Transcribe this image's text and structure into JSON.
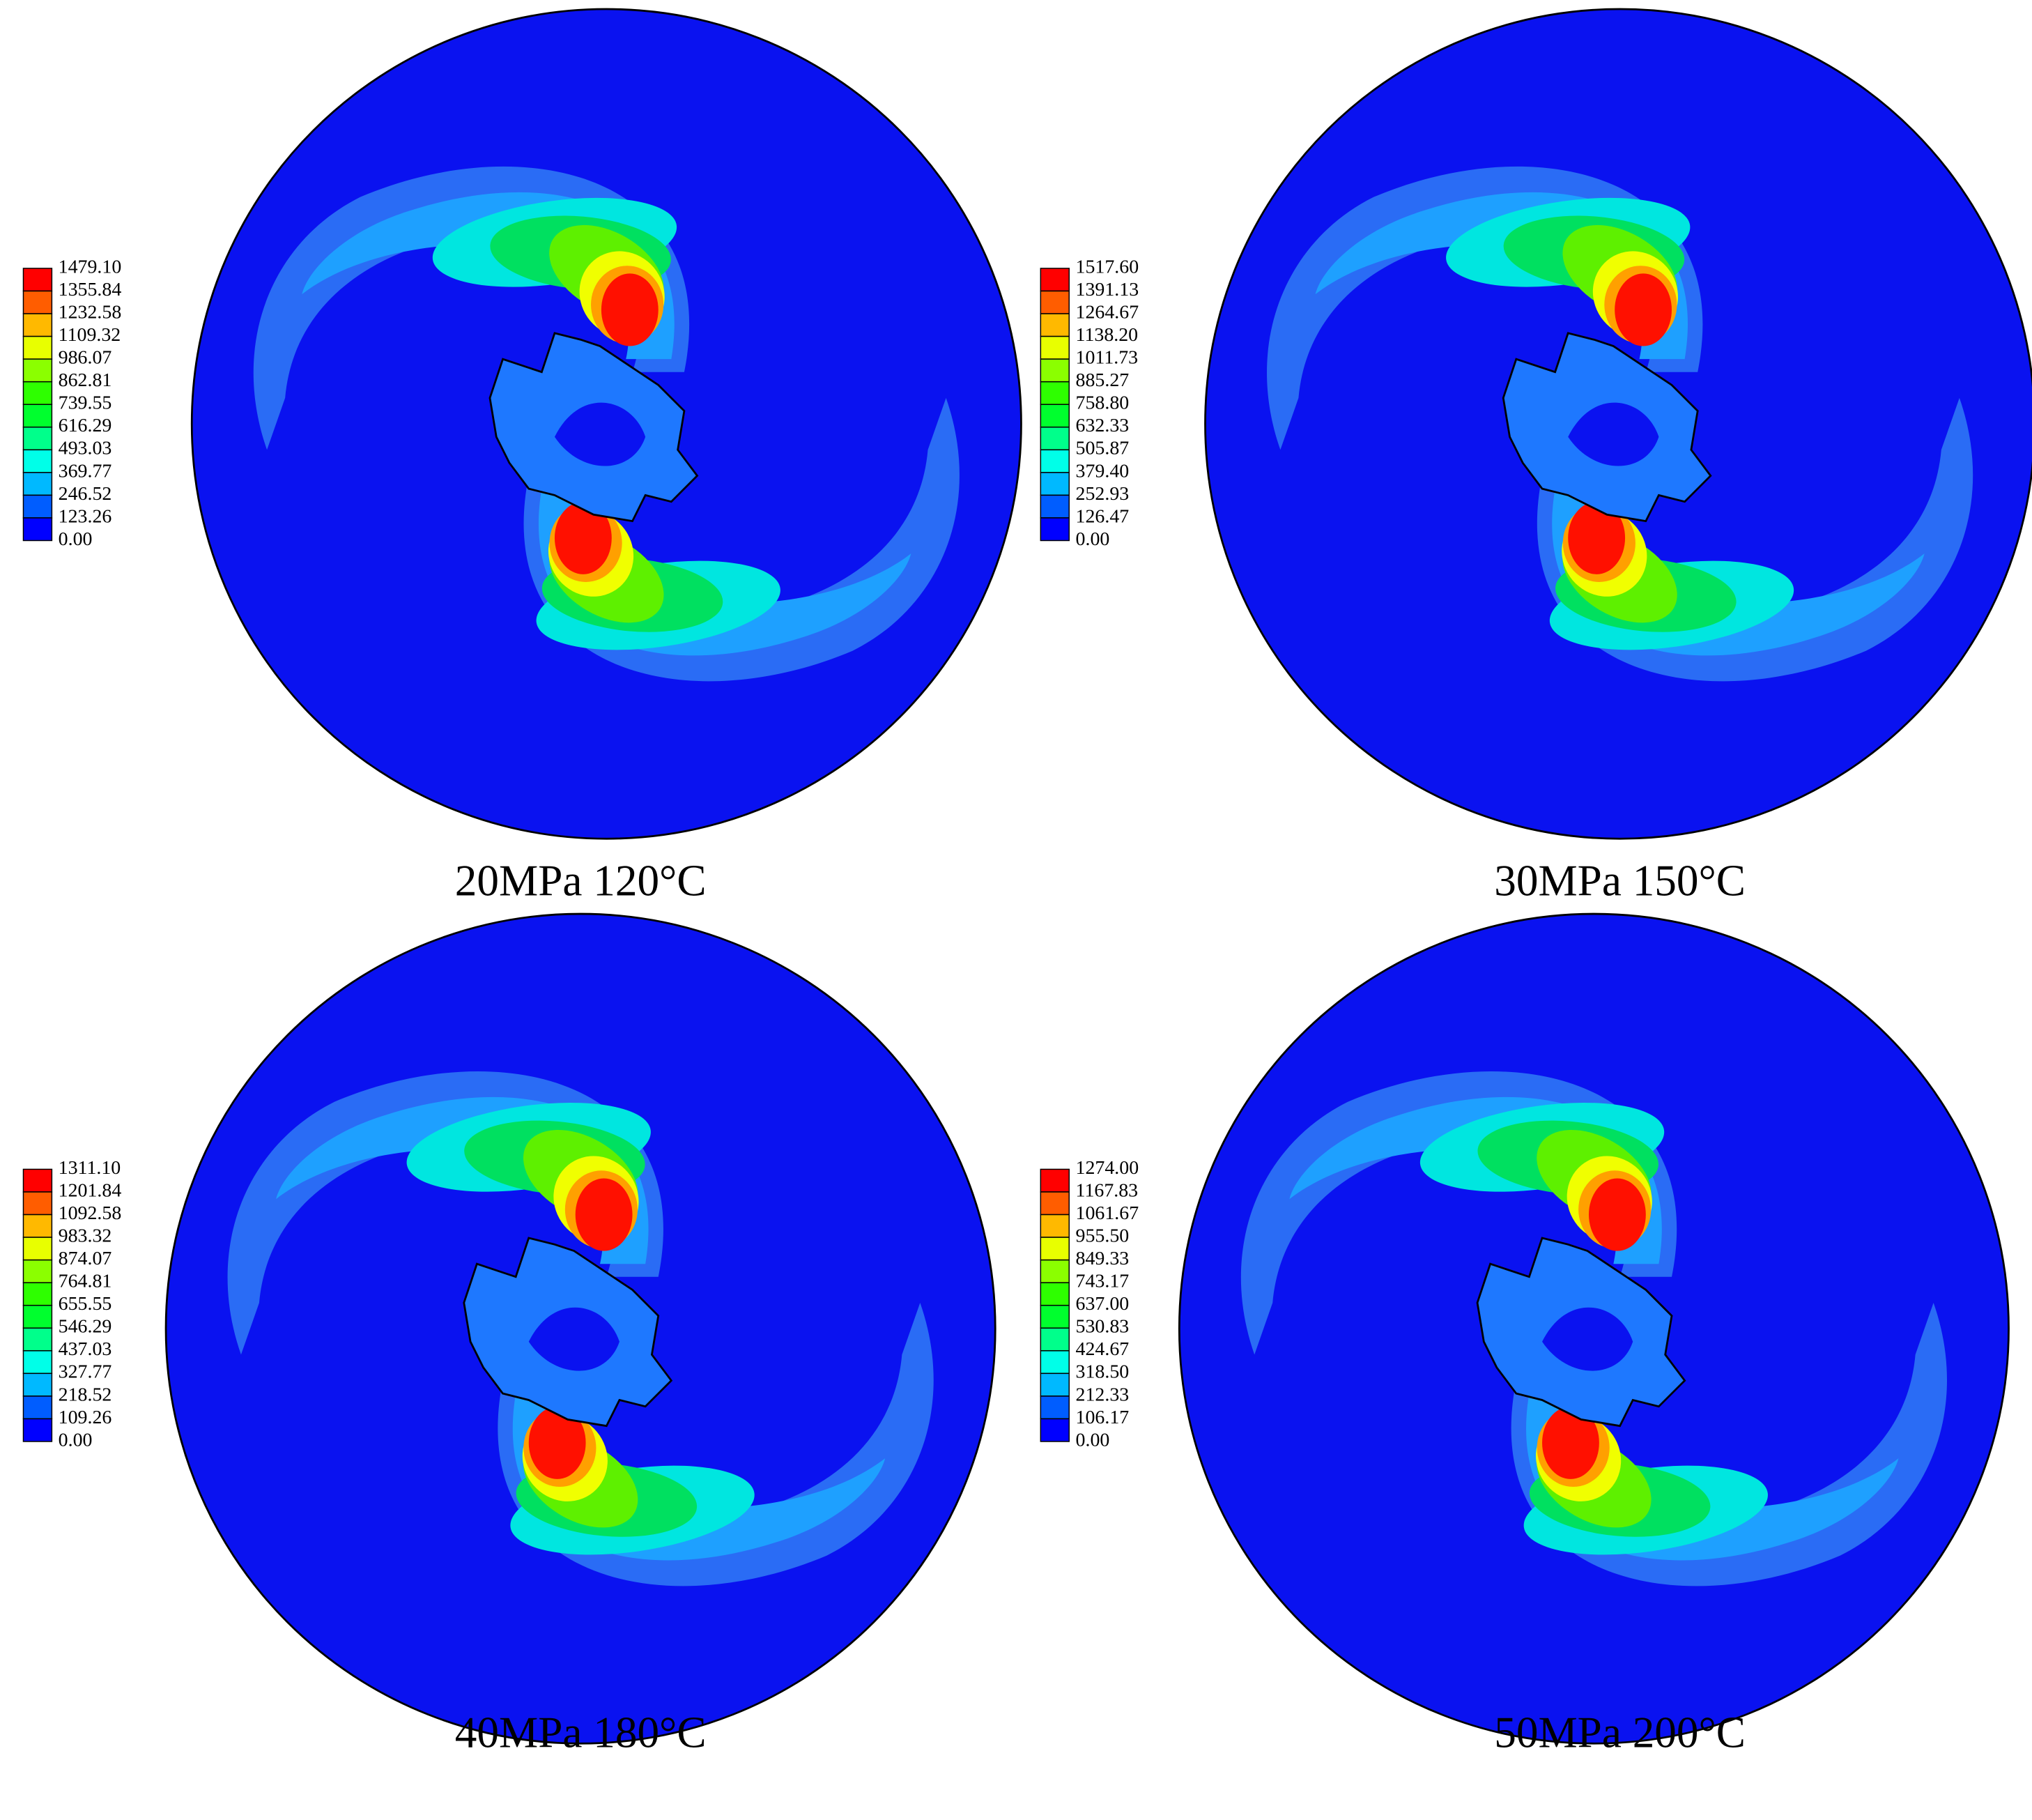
{
  "panels": [
    {
      "caption": "20MPa 120°C",
      "legend": [
        "1479.10",
        "1355.84",
        "1232.58",
        "1109.32",
        "986.07",
        "862.81",
        "739.55",
        "616.29",
        "493.03",
        "369.77",
        "246.52",
        "123.26",
        "0.00"
      ]
    },
    {
      "caption": "30MPa 150°C",
      "legend": [
        "1517.60",
        "1391.13",
        "1264.67",
        "1138.20",
        "1011.73",
        "885.27",
        "758.80",
        "632.33",
        "505.87",
        "379.40",
        "252.93",
        "126.47",
        "0.00"
      ]
    },
    {
      "caption": "40MPa 180°C",
      "legend": [
        "1311.10",
        "1201.84",
        "1092.58",
        "983.32",
        "874.07",
        "764.81",
        "655.55",
        "546.29",
        "437.03",
        "327.77",
        "218.52",
        "109.26",
        "0.00"
      ]
    },
    {
      "caption": "50MPa 200°C",
      "legend": [
        "1274.00",
        "1167.83",
        "1061.67",
        "955.50",
        "849.33",
        "743.17",
        "637.00",
        "530.83",
        "424.67",
        "318.50",
        "212.33",
        "106.17",
        "0.00"
      ]
    }
  ]
}
